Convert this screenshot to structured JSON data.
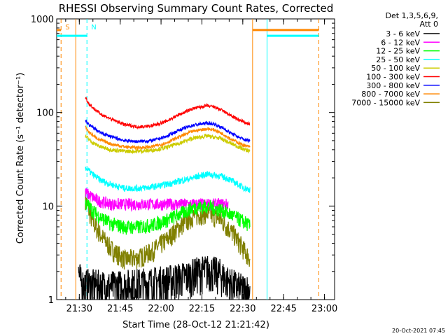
{
  "chart_data": {
    "type": "line",
    "title": "RHESSI Observing Summary Count Rates, Corrected",
    "xlabel": "Start Time (28-Oct-12 21:21:42)",
    "ylabel": "Corrected Count Rate (s⁻¹ detector⁻¹)",
    "yscale": "log",
    "ylim": [
      1,
      1000
    ],
    "xlim_minutes": [
      0,
      102
    ],
    "x_ticks": [
      {
        "t": 8.3,
        "label": "21:30"
      },
      {
        "t": 23.3,
        "label": "21:45"
      },
      {
        "t": 38.3,
        "label": "22:00"
      },
      {
        "t": 53.3,
        "label": "22:15"
      },
      {
        "t": 68.3,
        "label": "22:30"
      },
      {
        "t": 83.3,
        "label": "22:45"
      },
      {
        "t": 98.3,
        "label": "23:00"
      }
    ],
    "y_ticks": [
      {
        "v": 1,
        "label": "1"
      },
      {
        "v": 10,
        "label": "10"
      },
      {
        "v": 100,
        "label": "100"
      },
      {
        "v": 1000,
        "label": "1000"
      }
    ],
    "legend_header": [
      "Det 1,3,5,6,9,",
      "Att 0"
    ],
    "series": [
      {
        "name": "3 - 6 keV",
        "color": "#000000",
        "t": [
          8,
          9,
          20,
          30,
          40,
          48,
          52,
          56,
          60,
          64,
          68,
          71
        ],
        "v": [
          2.0,
          1.5,
          1.4,
          1.5,
          1.6,
          1.8,
          2.0,
          2.1,
          1.9,
          1.5,
          1.3,
          1.3
        ]
      },
      {
        "name": "6 - 12 keV",
        "color": "#ff00ff",
        "t": [
          10.5,
          15,
          20,
          25,
          30,
          35,
          40,
          45,
          50,
          55,
          60,
          63
        ],
        "v": [
          14,
          11.5,
          10.5,
          10.5,
          10.5,
          10.5,
          10.5,
          10.5,
          10.5,
          10.5,
          10.5,
          10.5
        ]
      },
      {
        "name": "12 - 25 keV",
        "color": "#00ff00",
        "t": [
          10.5,
          15,
          20,
          25,
          30,
          35,
          40,
          45,
          50,
          55,
          60,
          65,
          70,
          71
        ],
        "v": [
          11,
          8,
          6.5,
          6.0,
          6.0,
          6.3,
          7.0,
          8.2,
          9.6,
          10.0,
          9.2,
          7.8,
          6.5,
          6.0
        ]
      },
      {
        "name": "25 - 50 keV",
        "color": "#00ffff",
        "t": [
          10.5,
          13,
          16,
          20,
          25,
          30,
          35,
          40,
          45,
          50,
          55,
          60,
          63,
          66,
          69,
          71
        ],
        "v": [
          26,
          22,
          19,
          17,
          15.5,
          15.5,
          16,
          17,
          18.5,
          20,
          22,
          21,
          19.5,
          17.5,
          15.5,
          15
        ]
      },
      {
        "name": "50 - 100 keV",
        "color": "#cccc00",
        "t": [
          10.5,
          13,
          16,
          20,
          25,
          30,
          35,
          40,
          45,
          50,
          55,
          60,
          63,
          66,
          69,
          71
        ],
        "v": [
          56,
          48,
          43,
          40,
          38.5,
          38.5,
          39.5,
          42,
          47,
          53,
          56,
          53,
          48,
          44,
          40,
          39
        ]
      },
      {
        "name": "100 - 300 keV",
        "color": "#ff0000",
        "t": [
          10.5,
          12,
          14,
          16,
          20,
          25,
          30,
          35,
          40,
          45,
          50,
          55,
          58,
          61,
          64,
          67,
          69,
          71
        ],
        "v": [
          145,
          122,
          108,
          97,
          85,
          74,
          70,
          72,
          80,
          95,
          110,
          118,
          114,
          104,
          92,
          83,
          78,
          75
        ]
      },
      {
        "name": "300 - 800 keV",
        "color": "#0000ff",
        "t": [
          10.5,
          12,
          14,
          16,
          20,
          25,
          30,
          35,
          40,
          45,
          50,
          55,
          58,
          61,
          64,
          67,
          69,
          71
        ],
        "v": [
          82,
          73,
          67,
          61,
          55,
          50,
          49,
          50,
          55,
          65,
          73,
          77,
          75,
          68,
          60,
          54,
          51,
          50
        ]
      },
      {
        "name": "800 - 7000 keV",
        "color": "#ff8800",
        "t": [
          10.5,
          12,
          14,
          16,
          20,
          25,
          30,
          35,
          40,
          45,
          50,
          55,
          58,
          61,
          64,
          67,
          69,
          71
        ],
        "v": [
          70,
          61,
          55,
          51,
          46,
          43,
          42,
          43,
          47,
          55,
          63,
          67,
          65,
          59,
          52,
          47,
          44,
          43
        ]
      },
      {
        "name": "7000 - 15000 keV",
        "color": "#808000",
        "t": [
          10.5,
          13,
          16,
          20,
          25,
          30,
          35,
          40,
          45,
          50,
          55,
          60,
          65,
          70,
          71
        ],
        "v": [
          12,
          7,
          5,
          3.5,
          2.7,
          2.8,
          3.3,
          4.3,
          6.0,
          7.8,
          8.5,
          7.3,
          5.0,
          3.0,
          2.8
        ]
      }
    ],
    "annotations": [
      {
        "label": "S",
        "t": 1.6,
        "color": "#ff8800"
      },
      {
        "label": "N",
        "t": 11.1,
        "color": "#00ffff"
      }
    ],
    "event_lines": [
      {
        "t": 1.6,
        "color": "#ff8800",
        "style": "dashed"
      },
      {
        "t": 7.0,
        "color": "#ff8800",
        "style": "solid"
      },
      {
        "t": 11.1,
        "color": "#00ffff",
        "style": "dashed"
      },
      {
        "t": 71.9,
        "color": "#ff8800",
        "style": "solid"
      },
      {
        "t": 77.2,
        "color": "#00ffff",
        "style": "solid"
      },
      {
        "t": 96.2,
        "color": "#ff8800",
        "style": "dashed"
      }
    ],
    "flag_bars": [
      {
        "t1": 0,
        "t2": 1.6,
        "value": 760,
        "color": "#ff8800"
      },
      {
        "t1": 0,
        "t2": 11.1,
        "value": 660,
        "color": "#00ffff"
      },
      {
        "t1": 71.9,
        "t2": 96.2,
        "value": 760,
        "color": "#ff8800"
      },
      {
        "t1": 77.2,
        "t2": 96.2,
        "value": 660,
        "color": "#00ffff"
      }
    ]
  },
  "timestamp": "20-Oct-2021 07:45"
}
